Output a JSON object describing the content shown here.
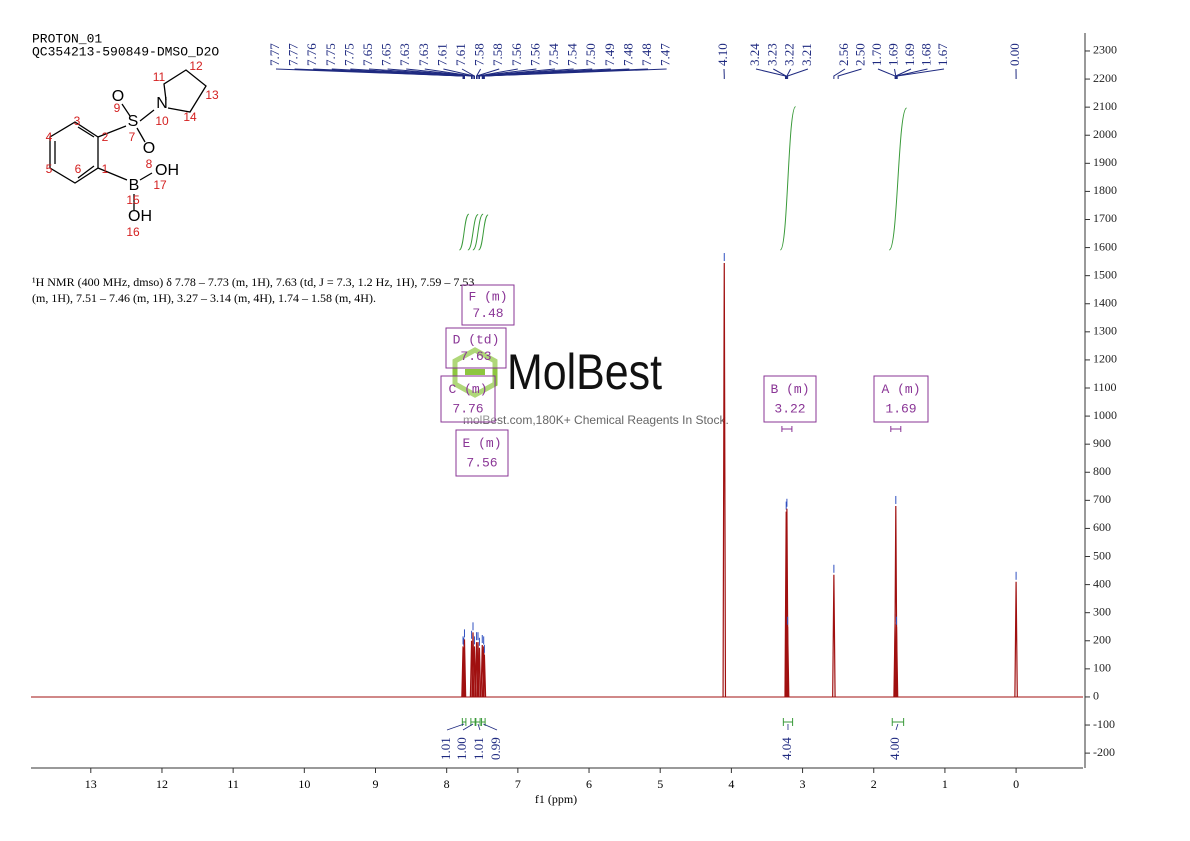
{
  "chart_data": {
    "type": "spectrum",
    "title": "PROTON_01",
    "subtitle": "QC354213-590849-DMSO_D2O",
    "x_label": "f1 (ppm)",
    "x": [
      7.77,
      7.76,
      7.75,
      7.65,
      7.63,
      7.61,
      7.58,
      7.56,
      7.54,
      7.5,
      7.48,
      7.47,
      4.1,
      3.23,
      3.22,
      3.21,
      2.56,
      1.7,
      1.69,
      1.68,
      0
    ],
    "values": [
      180,
      175,
      205,
      200,
      230,
      180,
      195,
      195,
      175,
      185,
      180,
      150,
      1545,
      660,
      670,
      250,
      435,
      260,
      680,
      250,
      410
    ],
    "color": "#a01010",
    "xlim": [
      13.84,
      -0.94
    ],
    "xticks": [
      13,
      12,
      11,
      10,
      9,
      8,
      7,
      6,
      5,
      4,
      3,
      2,
      1,
      0
    ],
    "ylim": [
      -253,
      2364
    ],
    "yticks": [
      -200,
      -100,
      0,
      100,
      200,
      300,
      400,
      500,
      600,
      700,
      800,
      900,
      1000,
      1100,
      1200,
      1300,
      1400,
      1500,
      1600,
      1700,
      1800,
      1900,
      2000,
      2100,
      2200,
      2300
    ],
    "peak_label_groups": [
      [
        7.77,
        7.77,
        7.76,
        7.75,
        7.75,
        7.65,
        7.65,
        7.63,
        7.63,
        7.61,
        7.61,
        7.58,
        7.58,
        7.56,
        7.56,
        7.54,
        7.54,
        {
          "value": 7.5,
          "label": "7.50"
        },
        7.49,
        7.48,
        7.48,
        7.47
      ],
      [
        {
          "value": 4.1,
          "label": "4.10"
        }
      ],
      [
        3.24,
        3.23,
        3.22,
        3.21
      ],
      [
        2.56,
        {
          "value": 2.5,
          "label": "2.50"
        },
        {
          "value": 1.7,
          "label": "1.70"
        },
        1.69,
        1.69,
        1.68,
        1.67
      ],
      [
        {
          "value": 0,
          "label": "0.00"
        }
      ]
    ],
    "integrals": [
      {
        "range": [
          7.78,
          7.73
        ],
        "value": 1.01
      },
      {
        "range": [
          7.66,
          7.6
        ],
        "value": {
          "value": 1,
          "label": "1.00"
        }
      },
      {
        "range": [
          7.59,
          7.53
        ],
        "value": 1.01
      },
      {
        "range": [
          7.51,
          7.46
        ],
        "value": 0.99
      },
      {
        "range": [
          3.27,
          3.14
        ],
        "value": 4.04
      },
      {
        "range": [
          1.74,
          1.58
        ],
        "value": {
          "value": 4,
          "label": "4.00"
        }
      }
    ],
    "multiplets": [
      {
        "label": "F (m)",
        "shift": 7.48
      },
      {
        "label": "D (td)",
        "shift": 7.63
      },
      {
        "label": "C (m)",
        "shift": 7.76
      },
      {
        "label": "E (m)",
        "shift": 7.56
      },
      {
        "label": "B (m)",
        "shift": 3.22
      },
      {
        "label": "A (m)",
        "shift": 1.69
      }
    ]
  },
  "description": [
    "¹H NMR (400 MHz, dmso) δ 7.78 – 7.73 (m, 1H), 7.63 (td, J = 7.3, 1.2 Hz, 1H), 7.59 – 7.53",
    "(m, 1H), 7.51 – 7.46 (m, 1H), 3.27 – 3.14 (m, 4H), 1.74 – 1.58 (m, 4H)."
  ],
  "watermark": {
    "brand": "MolBest",
    "tagline": "molBest.com,180K+ Chemical Reagents In Stock."
  },
  "structure": {
    "atoms": [
      "O",
      "S",
      "N",
      "O",
      "B",
      "OH",
      "OH"
    ],
    "numbers": [
      1,
      2,
      3,
      4,
      5,
      6,
      7,
      8,
      9,
      10,
      11,
      12,
      13,
      14,
      15,
      16,
      17
    ]
  }
}
